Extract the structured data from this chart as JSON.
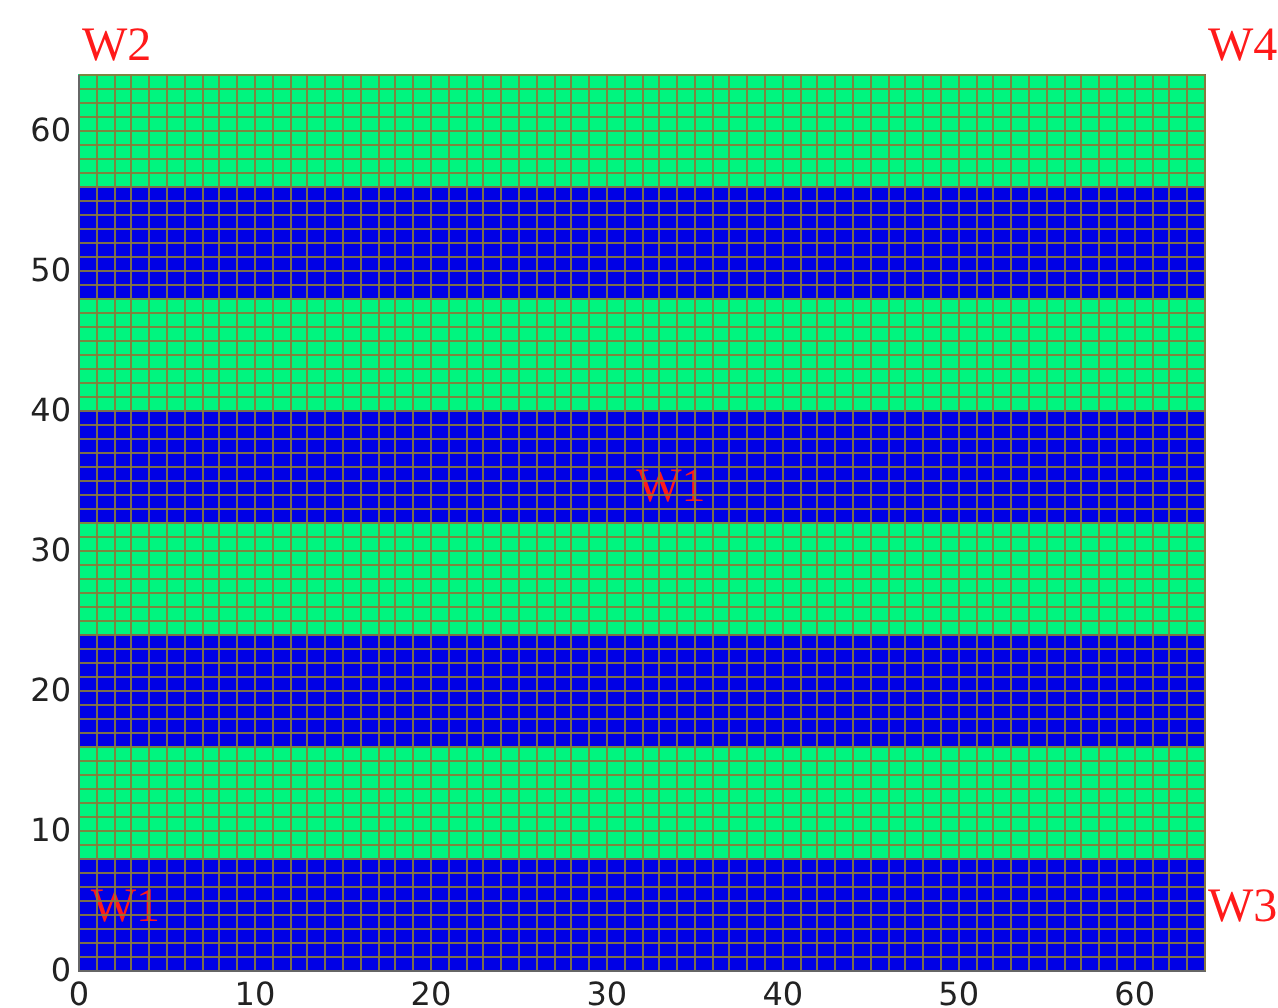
{
  "chart_data": {
    "type": "scatter",
    "xlim": [
      0,
      64
    ],
    "ylim": [
      0,
      64
    ],
    "xticks": [
      0,
      {
        "value": 1,
        "label": null
      },
      {
        "value": 2,
        "label": null
      },
      {
        "value": 3,
        "label": null
      },
      {
        "value": 4,
        "label": null
      },
      {
        "value": 5,
        "label": null
      },
      {
        "value": 6,
        "label": null
      },
      {
        "value": 7,
        "label": null
      },
      {
        "value": 8,
        "label": null
      },
      {
        "value": 9,
        "label": null
      },
      10,
      {
        "value": 11,
        "label": null
      },
      {
        "value": 12,
        "label": null
      },
      {
        "value": 13,
        "label": null
      },
      {
        "value": 14,
        "label": null
      },
      {
        "value": 15,
        "label": null
      },
      {
        "value": 16,
        "label": null
      },
      {
        "value": 17,
        "label": null
      },
      {
        "value": 18,
        "label": null
      },
      {
        "value": 19,
        "label": null
      },
      20,
      {
        "value": 21,
        "label": null
      },
      {
        "value": 22,
        "label": null
      },
      {
        "value": 23,
        "label": null
      },
      {
        "value": 24,
        "label": null
      },
      {
        "value": 25,
        "label": null
      },
      {
        "value": 26,
        "label": null
      },
      {
        "value": 27,
        "label": null
      },
      {
        "value": 28,
        "label": null
      },
      {
        "value": 29,
        "label": null
      },
      30,
      {
        "value": 31,
        "label": null
      },
      {
        "value": 32,
        "label": null
      },
      {
        "value": 33,
        "label": null
      },
      {
        "value": 34,
        "label": null
      },
      {
        "value": 35,
        "label": null
      },
      {
        "value": 36,
        "label": null
      },
      {
        "value": 37,
        "label": null
      },
      {
        "value": 38,
        "label": null
      },
      {
        "value": 39,
        "label": null
      },
      40,
      {
        "value": 41,
        "label": null
      },
      {
        "value": 42,
        "label": null
      },
      {
        "value": 43,
        "label": null
      },
      {
        "value": 44,
        "label": null
      },
      {
        "value": 45,
        "label": null
      },
      {
        "value": 46,
        "label": null
      },
      {
        "value": 47,
        "label": null
      },
      {
        "value": 48,
        "label": null
      },
      {
        "value": 49,
        "label": null
      },
      50,
      {
        "value": 51,
        "label": null
      },
      {
        "value": 52,
        "label": null
      },
      {
        "value": 53,
        "label": null
      },
      {
        "value": 54,
        "label": null
      },
      {
        "value": 55,
        "label": null
      },
      {
        "value": 56,
        "label": null
      },
      {
        "value": 57,
        "label": null
      },
      {
        "value": 58,
        "label": null
      },
      {
        "value": 59,
        "label": null
      },
      60,
      {
        "value": 61,
        "label": null
      },
      {
        "value": 62,
        "label": null
      },
      {
        "value": 63,
        "label": null
      },
      {
        "value": 64,
        "label": null
      }
    ],
    "yticks": [
      0,
      {
        "value": 1,
        "label": null
      },
      {
        "value": 2,
        "label": null
      },
      {
        "value": 3,
        "label": null
      },
      {
        "value": 4,
        "label": null
      },
      {
        "value": 5,
        "label": null
      },
      {
        "value": 6,
        "label": null
      },
      {
        "value": 7,
        "label": null
      },
      {
        "value": 8,
        "label": null
      },
      {
        "value": 9,
        "label": null
      },
      10,
      {
        "value": 11,
        "label": null
      },
      {
        "value": 12,
        "label": null
      },
      {
        "value": 13,
        "label": null
      },
      {
        "value": 14,
        "label": null
      },
      {
        "value": 15,
        "label": null
      },
      {
        "value": 16,
        "label": null
      },
      {
        "value": 17,
        "label": null
      },
      {
        "value": 18,
        "label": null
      },
      {
        "value": 19,
        "label": null
      },
      20,
      {
        "value": 21,
        "label": null
      },
      {
        "value": 22,
        "label": null
      },
      {
        "value": 23,
        "label": null
      },
      {
        "value": 24,
        "label": null
      },
      {
        "value": 25,
        "label": null
      },
      {
        "value": 26,
        "label": null
      },
      {
        "value": 27,
        "label": null
      },
      {
        "value": 28,
        "label": null
      },
      {
        "value": 29,
        "label": null
      },
      30,
      {
        "value": 31,
        "label": null
      },
      {
        "value": 32,
        "label": null
      },
      {
        "value": 33,
        "label": null
      },
      {
        "value": 34,
        "label": null
      },
      {
        "value": 35,
        "label": null
      },
      {
        "value": 36,
        "label": null
      },
      {
        "value": 37,
        "label": null
      },
      {
        "value": 38,
        "label": null
      },
      {
        "value": 39,
        "label": null
      },
      40,
      {
        "value": 41,
        "label": null
      },
      {
        "value": 42,
        "label": null
      },
      {
        "value": 43,
        "label": null
      },
      {
        "value": 44,
        "label": null
      },
      {
        "value": 45,
        "label": null
      },
      {
        "value": 46,
        "label": null
      },
      {
        "value": 47,
        "label": null
      },
      {
        "value": 48,
        "label": null
      },
      {
        "value": 49,
        "label": null
      },
      50,
      {
        "value": 51,
        "label": null
      },
      {
        "value": 52,
        "label": null
      },
      {
        "value": 53,
        "label": null
      },
      {
        "value": 54,
        "label": null
      },
      {
        "value": 55,
        "label": null
      },
      {
        "value": 56,
        "label": null
      },
      {
        "value": 57,
        "label": null
      },
      {
        "value": 58,
        "label": null
      },
      {
        "value": 59,
        "label": null
      },
      60,
      {
        "value": 61,
        "label": null
      },
      {
        "value": 62,
        "label": null
      },
      {
        "value": 63,
        "label": null
      },
      {
        "value": 64,
        "label": null
      }
    ],
    "grid": true,
    "bands": [
      {
        "axis": "y",
        "from": 0,
        "to": 8,
        "color": "#0000e6"
      },
      {
        "axis": "y",
        "from": 8,
        "to": 16,
        "color": "#00f57f"
      },
      {
        "axis": "y",
        "from": 16,
        "to": 24,
        "color": "#0000e6"
      },
      {
        "axis": "y",
        "from": 24,
        "to": 32,
        "color": "#00f57f"
      },
      {
        "axis": "y",
        "from": 32,
        "to": 40,
        "color": "#0000e6"
      },
      {
        "axis": "y",
        "from": 40,
        "to": 48,
        "color": "#00f57f"
      },
      {
        "axis": "y",
        "from": 48,
        "to": 56,
        "color": "#0000e6"
      },
      {
        "axis": "y",
        "from": 56,
        "to": 64,
        "color": "#00f57f"
      }
    ],
    "annotations": [
      {
        "text": "W2",
        "x": 0,
        "y": 64
      },
      {
        "text": "W4",
        "x": 64,
        "y": 64
      },
      {
        "text": "W1",
        "x": 31.5,
        "y": 32.5
      },
      {
        "text": "W1",
        "x": 0.5,
        "y": 2.5
      },
      {
        "text": "W3",
        "x": 64,
        "y": 2.5
      }
    ]
  }
}
